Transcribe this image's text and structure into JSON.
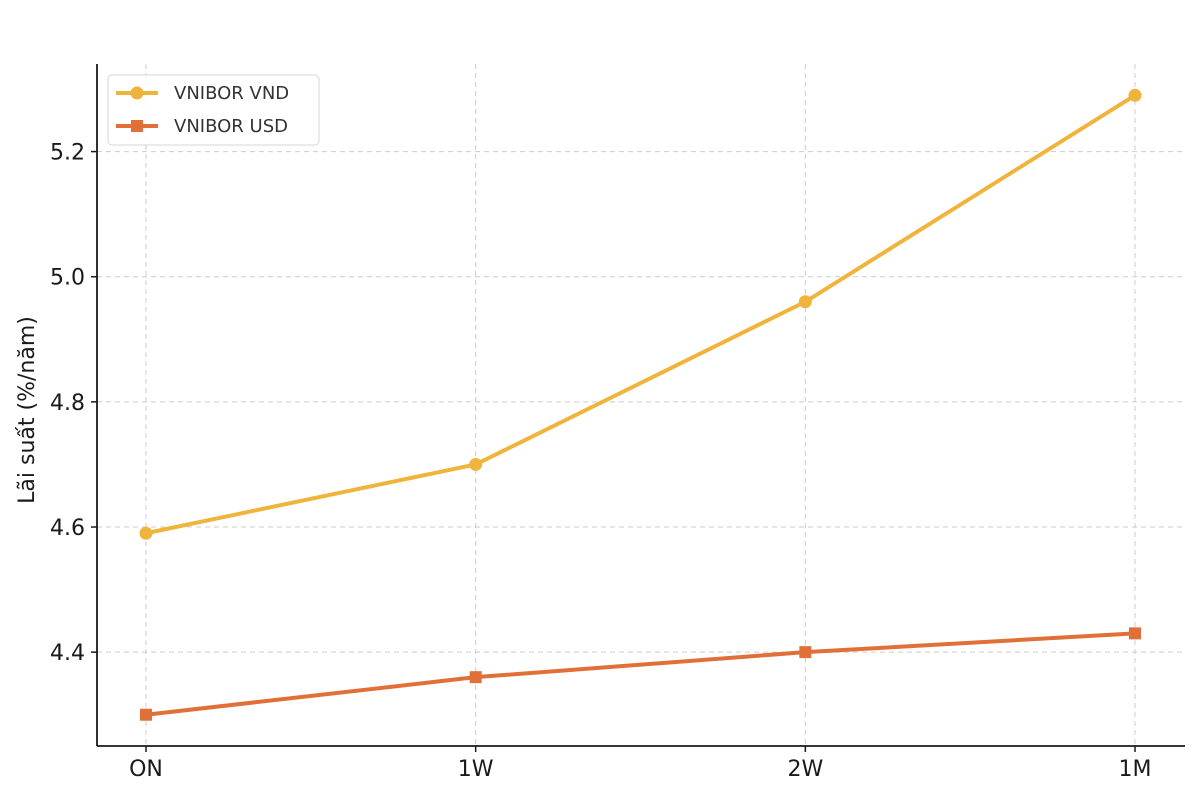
{
  "chart_data": {
    "type": "line",
    "title": "",
    "xlabel": "",
    "ylabel": "Lãi suất (%/năm)",
    "categories": [
      "ON",
      "1W",
      "2W",
      "1M"
    ],
    "series": [
      {
        "name": "VNIBOR VND",
        "values": [
          4.59,
          4.7,
          4.96,
          5.29
        ],
        "color": "#f0b43c",
        "marker": "circle"
      },
      {
        "name": "VNIBOR USD",
        "values": [
          4.3,
          4.36,
          4.4,
          4.43
        ],
        "color": "#e07038",
        "marker": "square"
      }
    ],
    "ylim": [
      4.25,
      5.34
    ],
    "yticks": [
      4.4,
      4.6,
      4.8,
      5.0,
      5.2
    ],
    "ytick_labels": [
      "4.4",
      "4.6",
      "4.8",
      "5.0",
      "5.2"
    ],
    "grid": true,
    "legend_position": "top-left"
  }
}
